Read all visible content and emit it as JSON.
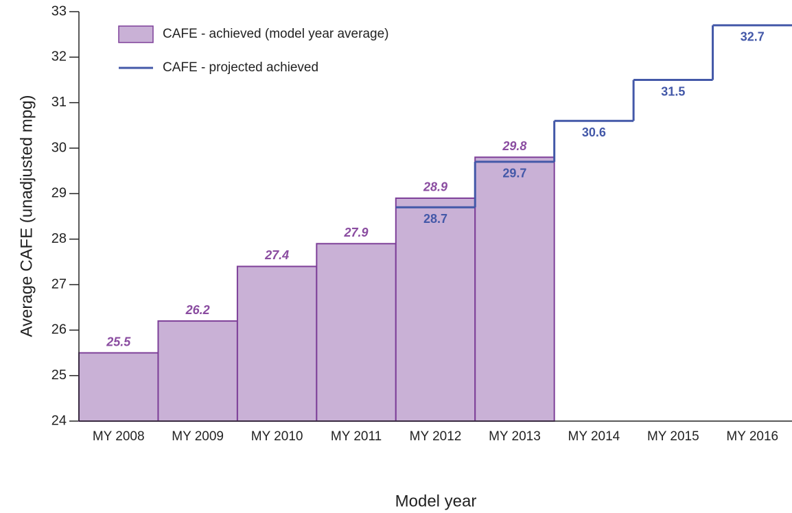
{
  "chart_data": {
    "type": "bar",
    "x_label": "Model year",
    "y_label": "Average CAFE (unadjusted mpg)",
    "categories": [
      "MY 2008",
      "MY 2009",
      "MY 2010",
      "MY 2011",
      "MY 2012",
      "MY 2013",
      "MY 2014",
      "MY 2015",
      "MY 2016"
    ],
    "series": [
      {
        "name": "CAFE - achieved (model year average)",
        "type": "bar",
        "color": "#c9b1d6",
        "edge_color": "#7d3f98",
        "label_color": "#8a4ca0",
        "values": [
          25.5,
          26.2,
          27.4,
          27.9,
          28.9,
          29.8,
          null,
          null,
          null
        ]
      },
      {
        "name": "CAFE - projected achieved",
        "type": "step",
        "color": "#4358a8",
        "label_color": "#4358a8",
        "values": [
          null,
          null,
          null,
          null,
          28.7,
          29.7,
          30.6,
          31.5,
          32.7
        ]
      }
    ],
    "ylim": [
      24,
      33
    ],
    "yticks": [
      24,
      25,
      26,
      27,
      28,
      29,
      30,
      31,
      32,
      33
    ],
    "legend": "upper left"
  }
}
